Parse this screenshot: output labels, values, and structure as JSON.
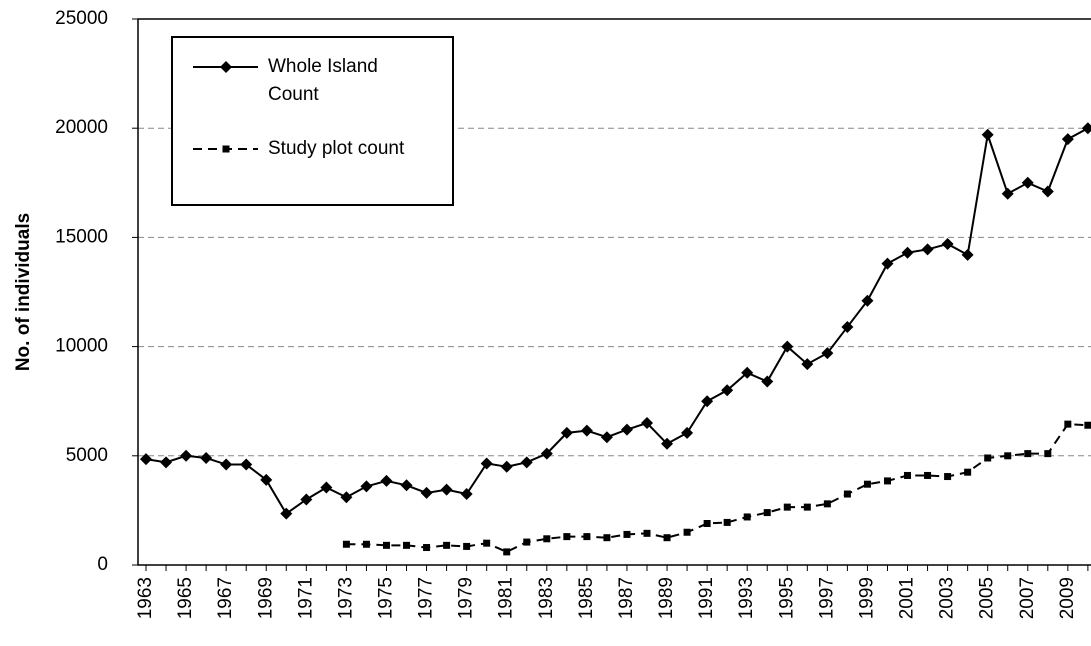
{
  "chart_data": {
    "type": "line",
    "y_label": "No. of individuals",
    "categories": [
      "1963",
      null,
      "1965",
      null,
      "1967",
      null,
      "1969",
      null,
      "1971",
      null,
      "1973",
      null,
      "1975",
      null,
      "1977",
      null,
      "1979",
      null,
      "1981",
      null,
      "1983",
      null,
      "1985",
      null,
      "1987",
      null,
      "1989",
      null,
      "1991",
      null,
      "1993",
      null,
      "1995",
      null,
      "1997",
      null,
      "1999",
      null,
      "2001",
      null,
      "2003",
      null,
      "2005",
      null,
      "2007",
      null,
      "2009",
      null
    ],
    "series": [
      {
        "name": "Whole Island Count",
        "color": "#000000",
        "style": "solid",
        "marker": "diamond",
        "values": [
          4850,
          4700,
          5000,
          4900,
          4600,
          4600,
          3900,
          2350,
          3000,
          3550,
          3100,
          3600,
          3850,
          3650,
          3300,
          3450,
          3250,
          4650,
          4500,
          4700,
          5100,
          6050,
          6150,
          5850,
          6200,
          6500,
          5550,
          6050,
          7500,
          8000,
          8800,
          8400,
          10000,
          9200,
          9700,
          10900,
          12100,
          13800,
          14300,
          14450,
          14700,
          14200,
          19700,
          17000,
          17500,
          17100,
          19500,
          20000
        ]
      },
      {
        "name": "Study plot count",
        "color": "#000000",
        "style": "dashed",
        "marker": "square",
        "values": [
          null,
          null,
          null,
          null,
          null,
          null,
          null,
          null,
          null,
          null,
          950,
          950,
          900,
          900,
          800,
          900,
          850,
          1000,
          600,
          1050,
          1200,
          1300,
          1300,
          1250,
          1400,
          1450,
          1250,
          1500,
          1900,
          1950,
          2200,
          2400,
          2650,
          2650,
          2800,
          3250,
          3700,
          3850,
          4100,
          4100,
          4050,
          4250,
          4900,
          5000,
          5100,
          5100,
          6450,
          6400
        ]
      }
    ],
    "ylim": [
      0,
      25000
    ],
    "yticks": [
      0,
      5000,
      10000,
      15000,
      20000,
      25000
    ],
    "grid": true,
    "legend": "upper left"
  }
}
